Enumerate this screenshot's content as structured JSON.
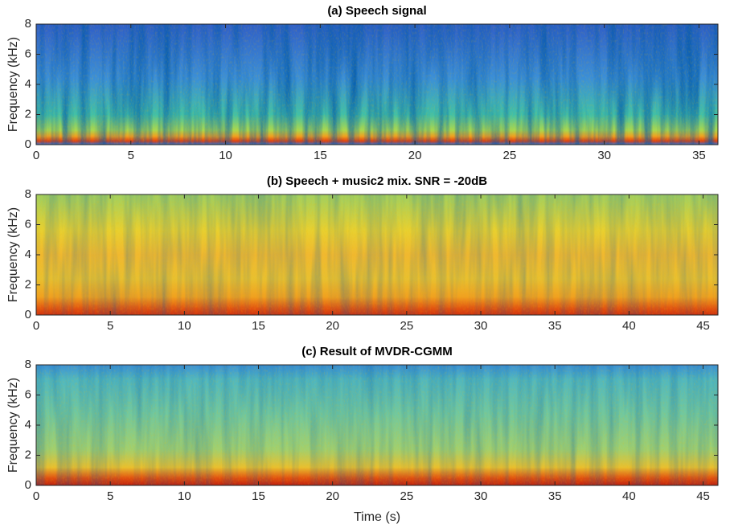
{
  "chart_data": [
    {
      "type": "spectrogram",
      "title": "(a) Speech signal",
      "ylabel": "Frequency (kHz)",
      "xlim": [
        0,
        36
      ],
      "xticks": [
        0,
        5,
        10,
        15,
        20,
        25,
        30,
        35
      ],
      "ylim": [
        0,
        8
      ],
      "yticks": [
        0,
        2,
        4,
        6,
        8
      ]
    },
    {
      "type": "spectrogram",
      "title": "(b) Speech + music2 mix. SNR = -20dB",
      "ylabel": "Frequency (kHz)",
      "xlim": [
        0,
        46
      ],
      "xticks": [
        0,
        5,
        10,
        15,
        20,
        25,
        30,
        35,
        40,
        45
      ],
      "ylim": [
        0,
        8
      ],
      "yticks": [
        0,
        2,
        4,
        6,
        8
      ]
    },
    {
      "type": "spectrogram",
      "title": "(c) Result of  MVDR-CGMM",
      "ylabel": "Frequency (kHz)",
      "xlabel": "Time (s)",
      "xlim": [
        0,
        46
      ],
      "xticks": [
        0,
        5,
        10,
        15,
        20,
        25,
        30,
        35,
        40,
        45
      ],
      "ylim": [
        0,
        8
      ],
      "yticks": [
        0,
        2,
        4,
        6,
        8
      ]
    }
  ]
}
